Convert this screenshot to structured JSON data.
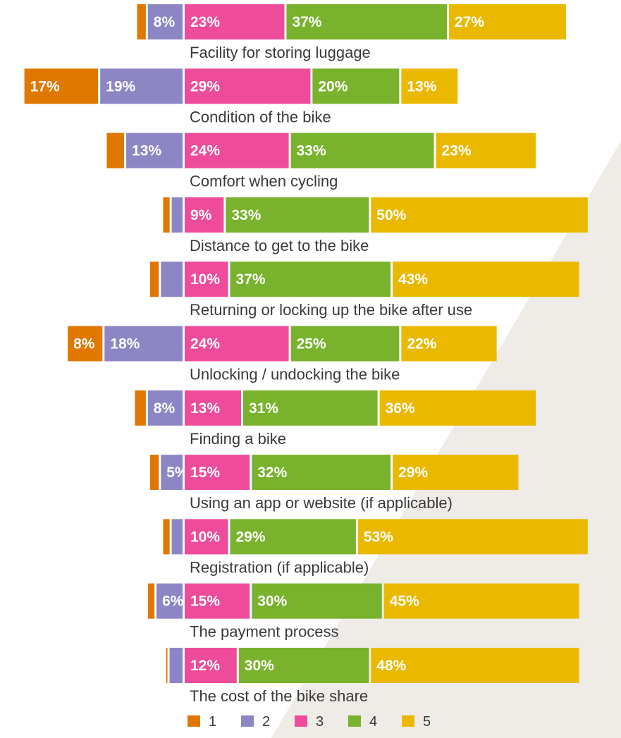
{
  "chart_data": {
    "type": "bar",
    "layout": "diverging-stacked-horizontal",
    "legend_position": "bottom",
    "series": [
      {
        "name": "1",
        "color": "#e07800"
      },
      {
        "name": "2",
        "color": "#8d86c4"
      },
      {
        "name": "3",
        "color": "#ef4b9b"
      },
      {
        "name": "4",
        "color": "#79b22c"
      },
      {
        "name": "5",
        "color": "#ebb800"
      }
    ],
    "rows": [
      {
        "category": "Facility for storing luggage",
        "values": [
          2,
          8,
          23,
          37,
          27
        ],
        "labels": [
          "",
          "8%",
          "23%",
          "37%",
          "27%"
        ]
      },
      {
        "category": "Condition of the bike",
        "values": [
          17,
          19,
          29,
          20,
          13
        ],
        "labels": [
          "17%",
          "19%",
          "29%",
          "20%",
          "13%"
        ]
      },
      {
        "category": "Comfort when cycling",
        "values": [
          4,
          13,
          24,
          33,
          23
        ],
        "labels": [
          "",
          "13%",
          "24%",
          "33%",
          "23%"
        ]
      },
      {
        "category": "Distance to get to the bike",
        "values": [
          1.5,
          2.5,
          9,
          33,
          50
        ],
        "labels": [
          "",
          "",
          "9%",
          "33%",
          "50%"
        ]
      },
      {
        "category": "Returning or locking up the bike after use",
        "values": [
          2,
          5,
          10,
          37,
          43
        ],
        "labels": [
          "",
          "",
          "10%",
          "37%",
          "43%"
        ]
      },
      {
        "category": "Unlocking / undocking the bike",
        "values": [
          8,
          18,
          24,
          25,
          22
        ],
        "labels": [
          "8%",
          "18%",
          "24%",
          "25%",
          "22%"
        ]
      },
      {
        "category": "Finding a bike",
        "values": [
          2.5,
          8,
          13,
          31,
          36
        ],
        "labels": [
          "",
          "8%",
          "13%",
          "31%",
          "36%"
        ]
      },
      {
        "category": "Using an app or website (if applicable)",
        "values": [
          2,
          5,
          15,
          32,
          29
        ],
        "labels": [
          "",
          "5%",
          "15%",
          "32%",
          "29%"
        ]
      },
      {
        "category": "Registration (if applicable)",
        "values": [
          1.5,
          2.5,
          10,
          29,
          53
        ],
        "labels": [
          "",
          "",
          "10%",
          "29%",
          "53%"
        ]
      },
      {
        "category": "The payment process",
        "values": [
          1.5,
          6,
          15,
          30,
          45
        ],
        "labels": [
          "",
          "6%",
          "15%",
          "30%",
          "45%"
        ]
      },
      {
        "category": "The cost of the bike share",
        "values": [
          0.3,
          3,
          12,
          30,
          48
        ],
        "labels": [
          "",
          "",
          "12%",
          "30%",
          "48%"
        ]
      }
    ]
  }
}
